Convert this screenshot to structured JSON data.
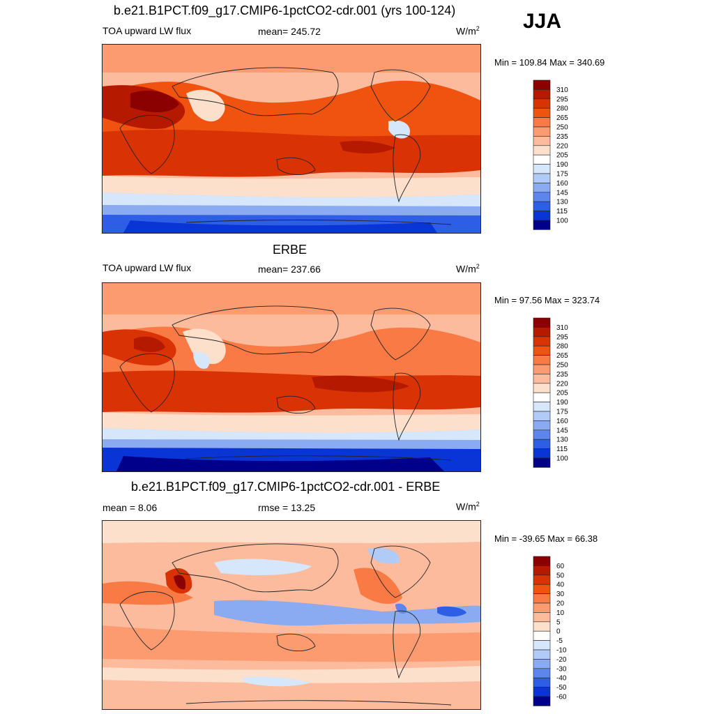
{
  "season": "JJA",
  "panels": [
    {
      "title": "b.e21.B1PCT.f09_g17.CMIP6-1pctCO2-cdr.001 (yrs 100-124)",
      "left_label": "TOA upward LW flux",
      "center_label": "mean= 245.72",
      "unit_base": "W/m",
      "unit_exp": "2",
      "minmax": "Min = 109.84 Max = 340.69",
      "colorbar_labels": [
        "310",
        "295",
        "280",
        "265",
        "250",
        "235",
        "220",
        "205",
        "190",
        "175",
        "160",
        "145",
        "130",
        "115",
        "100"
      ],
      "colorbar_colors": [
        "#8b0000",
        "#b51a00",
        "#d93205",
        "#f0520f",
        "#fa7a45",
        "#fc9a70",
        "#fdbb9e",
        "#fde0cc",
        "#ffffff",
        "#d6e6fb",
        "#b0cbf7",
        "#8aaaf2",
        "#5c86ec",
        "#2f5ee6",
        "#0a35d6",
        "#00008b"
      ]
    },
    {
      "title": "ERBE",
      "left_label": "TOA upward LW flux",
      "center_label": "mean= 237.66",
      "unit_base": "W/m",
      "unit_exp": "2",
      "minmax": "Min =  97.56 Max = 323.74",
      "colorbar_labels": [
        "310",
        "295",
        "280",
        "265",
        "250",
        "235",
        "220",
        "205",
        "190",
        "175",
        "160",
        "145",
        "130",
        "115",
        "100"
      ],
      "colorbar_colors": [
        "#8b0000",
        "#b51a00",
        "#d93205",
        "#f0520f",
        "#fa7a45",
        "#fc9a70",
        "#fdbb9e",
        "#fde0cc",
        "#ffffff",
        "#d6e6fb",
        "#b0cbf7",
        "#8aaaf2",
        "#5c86ec",
        "#2f5ee6",
        "#0a35d6",
        "#00008b"
      ]
    },
    {
      "title": "b.e21.B1PCT.f09_g17.CMIP6-1pctCO2-cdr.001 - ERBE",
      "left_label": "mean =   8.06",
      "center_label": "rmse =  13.25",
      "unit_base": "W/m",
      "unit_exp": "2",
      "minmax": "Min = -39.65 Max =  66.38",
      "colorbar_labels": [
        "60",
        "50",
        "40",
        "30",
        "20",
        "10",
        "5",
        "0",
        "-5",
        "-10",
        "-20",
        "-30",
        "-40",
        "-50",
        "-60"
      ],
      "colorbar_colors": [
        "#8b0000",
        "#b51a00",
        "#d93205",
        "#f0520f",
        "#fa7a45",
        "#fc9a70",
        "#fdbb9e",
        "#fde0cc",
        "#ffffff",
        "#d6e6fb",
        "#b0cbf7",
        "#8aaaf2",
        "#5c86ec",
        "#2f5ee6",
        "#0a35d6",
        "#00008b"
      ]
    }
  ]
}
